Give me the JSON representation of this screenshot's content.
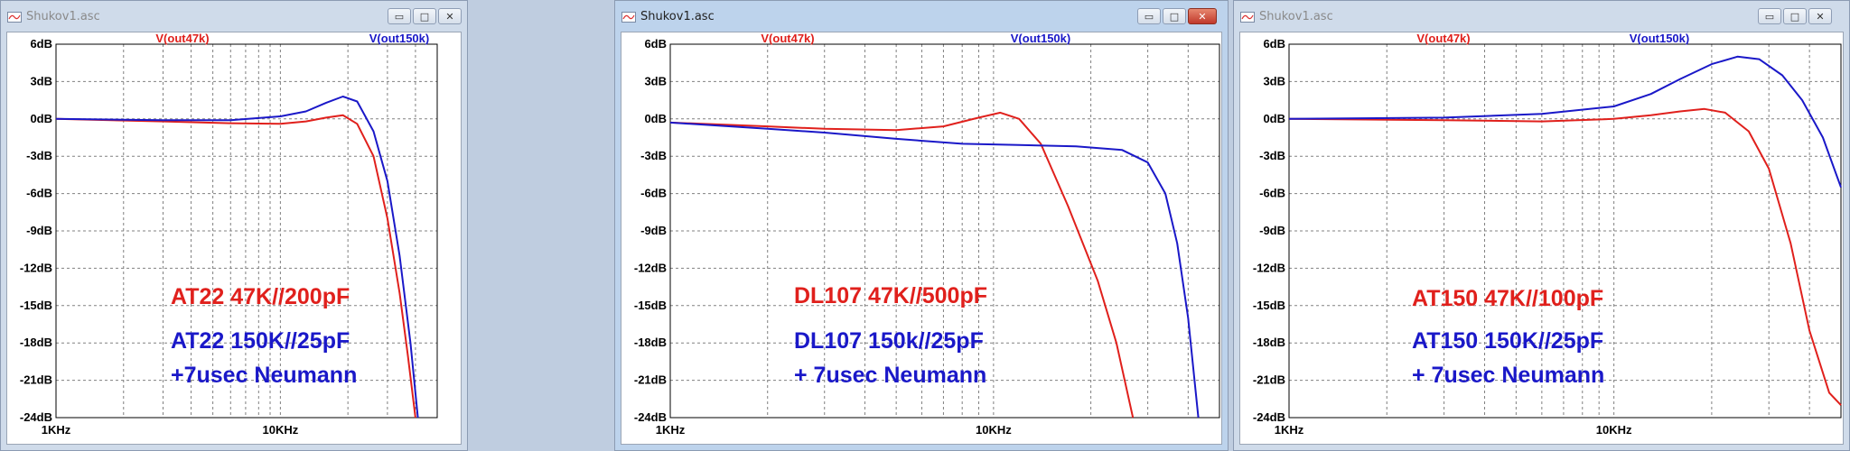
{
  "windows": [
    {
      "title": "Shukov1.asc",
      "active": false,
      "controls": {
        "minimize": "▭",
        "maximize": "□",
        "close": "✕"
      },
      "trace_labels": {
        "red": "V(out47k)",
        "blue": "V(out150k)"
      },
      "y_ticks": [
        "6dB",
        "3dB",
        "0dB",
        "-3dB",
        "-6dB",
        "-9dB",
        "-12dB",
        "-15dB",
        "-18dB",
        "-21dB",
        "-24dB"
      ],
      "x_ticks": [
        "1KHz",
        "10KHz"
      ],
      "annotations": {
        "red": "AT22 47K//200pF",
        "blue1": "AT22 150K//25pF",
        "blue2": "+7usec Neumann"
      }
    },
    {
      "title": "Shukov1.asc",
      "active": true,
      "controls": {
        "minimize": "▭",
        "maximize": "□",
        "close": "✕"
      },
      "trace_labels": {
        "red": "V(out47k)",
        "blue": "V(out150k)"
      },
      "y_ticks": [
        "6dB",
        "3dB",
        "0dB",
        "-3dB",
        "-6dB",
        "-9dB",
        "-12dB",
        "-15dB",
        "-18dB",
        "-21dB",
        "-24dB"
      ],
      "x_ticks": [
        "1KHz",
        "10KHz"
      ],
      "annotations": {
        "red": "DL107 47K//500pF",
        "blue1": "DL107 150k//25pF",
        "blue2": "+ 7usec Neumann"
      }
    },
    {
      "title": "Shukov1.asc",
      "active": false,
      "controls": {
        "minimize": "▭",
        "maximize": "□",
        "close": "✕"
      },
      "trace_labels": {
        "red": "V(out47k)",
        "blue": "V(out150k)"
      },
      "y_ticks": [
        "6dB",
        "3dB",
        "0dB",
        "-3dB",
        "-6dB",
        "-9dB",
        "-12dB",
        "-15dB",
        "-18dB",
        "-21dB",
        "-24dB"
      ],
      "x_ticks": [
        "1KHz",
        "10KHz"
      ],
      "annotations": {
        "red": "AT150 47K//100pF",
        "blue1": "AT150 150K//25pF",
        "blue2": "+ 7usec Neumann"
      }
    }
  ],
  "chart_data": [
    {
      "type": "line",
      "x_scale": "log",
      "xlim": [
        1,
        50
      ],
      "ylim": [
        -24,
        6
      ],
      "grid": true,
      "x_tick_labels": [
        "1KHz",
        "10KHz"
      ],
      "y_tick_labels": [
        "6dB",
        "3dB",
        "0dB",
        "-3dB",
        "-6dB",
        "-9dB",
        "-12dB",
        "-15dB",
        "-18dB",
        "-21dB",
        "-24dB"
      ],
      "series": [
        {
          "name": "V(out47k)",
          "color": "#e0201c",
          "points": [
            [
              1,
              0
            ],
            [
              3,
              -0.2
            ],
            [
              6,
              -0.35
            ],
            [
              10,
              -0.4
            ],
            [
              13,
              -0.2
            ],
            [
              16,
              0.1
            ],
            [
              19,
              0.3
            ],
            [
              22,
              -0.4
            ],
            [
              26,
              -3
            ],
            [
              30,
              -8
            ],
            [
              34,
              -14
            ],
            [
              37,
              -19
            ],
            [
              40,
              -24
            ]
          ]
        },
        {
          "name": "V(out150k)",
          "color": "#1a18c8",
          "points": [
            [
              1,
              0
            ],
            [
              3,
              -0.1
            ],
            [
              6,
              -0.1
            ],
            [
              10,
              0.2
            ],
            [
              13,
              0.6
            ],
            [
              16,
              1.3
            ],
            [
              19,
              1.8
            ],
            [
              22,
              1.4
            ],
            [
              26,
              -1
            ],
            [
              30,
              -5
            ],
            [
              34,
              -11
            ],
            [
              38,
              -18
            ],
            [
              41,
              -24
            ]
          ]
        }
      ]
    },
    {
      "type": "line",
      "x_scale": "log",
      "xlim": [
        1,
        50
      ],
      "ylim": [
        -24,
        6
      ],
      "grid": true,
      "x_tick_labels": [
        "1KHz",
        "10KHz"
      ],
      "y_tick_labels": [
        "6dB",
        "3dB",
        "0dB",
        "-3dB",
        "-6dB",
        "-9dB",
        "-12dB",
        "-15dB",
        "-18dB",
        "-21dB",
        "-24dB"
      ],
      "series": [
        {
          "name": "V(out47k)",
          "color": "#e0201c",
          "points": [
            [
              1,
              -0.3
            ],
            [
              2,
              -0.6
            ],
            [
              3,
              -0.8
            ],
            [
              5,
              -0.9
            ],
            [
              7,
              -0.6
            ],
            [
              9,
              0.1
            ],
            [
              10.5,
              0.5
            ],
            [
              12,
              0
            ],
            [
              14,
              -2
            ],
            [
              17,
              -7
            ],
            [
              21,
              -13
            ],
            [
              24,
              -18
            ],
            [
              27,
              -24
            ]
          ]
        },
        {
          "name": "V(out150k)",
          "color": "#1a18c8",
          "points": [
            [
              1,
              -0.3
            ],
            [
              2,
              -0.8
            ],
            [
              3,
              -1.1
            ],
            [
              5,
              -1.6
            ],
            [
              8,
              -2
            ],
            [
              12,
              -2.1
            ],
            [
              18,
              -2.2
            ],
            [
              25,
              -2.5
            ],
            [
              30,
              -3.5
            ],
            [
              34,
              -6
            ],
            [
              37,
              -10
            ],
            [
              40,
              -16
            ],
            [
              43,
              -24
            ]
          ]
        }
      ]
    },
    {
      "type": "line",
      "x_scale": "log",
      "xlim": [
        1,
        50
      ],
      "ylim": [
        -24,
        6
      ],
      "grid": true,
      "x_tick_labels": [
        "1KHz",
        "10KHz"
      ],
      "y_tick_labels": [
        "6dB",
        "3dB",
        "0dB",
        "-3dB",
        "-6dB",
        "-9dB",
        "-12dB",
        "-15dB",
        "-18dB",
        "-21dB",
        "-24dB"
      ],
      "series": [
        {
          "name": "V(out47k)",
          "color": "#e0201c",
          "points": [
            [
              1,
              0
            ],
            [
              3,
              -0.1
            ],
            [
              6,
              -0.2
            ],
            [
              10,
              0
            ],
            [
              13,
              0.3
            ],
            [
              16,
              0.6
            ],
            [
              19,
              0.8
            ],
            [
              22,
              0.5
            ],
            [
              26,
              -1
            ],
            [
              30,
              -4
            ],
            [
              35,
              -10
            ],
            [
              40,
              -17
            ],
            [
              46,
              -22
            ],
            [
              50,
              -23
            ]
          ]
        },
        {
          "name": "V(out150k)",
          "color": "#1a18c8",
          "points": [
            [
              1,
              0
            ],
            [
              3,
              0.1
            ],
            [
              6,
              0.4
            ],
            [
              10,
              1
            ],
            [
              13,
              2
            ],
            [
              16,
              3.2
            ],
            [
              20,
              4.4
            ],
            [
              24,
              5
            ],
            [
              28,
              4.8
            ],
            [
              33,
              3.5
            ],
            [
              38,
              1.5
            ],
            [
              44,
              -1.5
            ],
            [
              50,
              -5.5
            ]
          ]
        }
      ]
    }
  ]
}
